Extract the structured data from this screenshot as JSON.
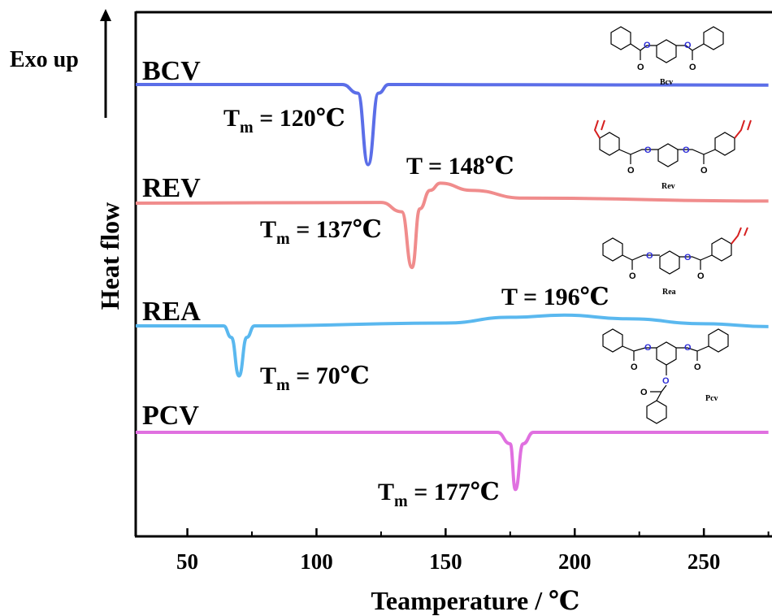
{
  "chart_data": {
    "type": "line",
    "xlabel": "Teamperature / ℃",
    "ylabel": "Heat flow",
    "y_direction_note": "Exo up",
    "xlim": [
      30,
      275
    ],
    "x_ticks": [
      50,
      100,
      150,
      200,
      250
    ],
    "y_ticks_shown": false,
    "grid": false,
    "series": [
      {
        "name": "BCV",
        "color": "#5b6ee8",
        "baseline": 0.0,
        "points": [
          [
            30,
            0.0
          ],
          [
            110,
            0.0
          ],
          [
            116,
            -0.6
          ],
          [
            120,
            -5.6
          ],
          [
            124,
            -0.6
          ],
          [
            128,
            0.0
          ],
          [
            200,
            -0.02
          ],
          [
            275,
            -0.04
          ]
        ]
      },
      {
        "name": "REV",
        "color": "#f08c8c",
        "baseline": 0.0,
        "points": [
          [
            30,
            0.0
          ],
          [
            125,
            0.05
          ],
          [
            133,
            -0.6
          ],
          [
            137,
            -4.5
          ],
          [
            140,
            -0.4
          ],
          [
            144,
            0.9
          ],
          [
            148,
            1.4
          ],
          [
            160,
            0.9
          ],
          [
            180,
            0.35
          ],
          [
            275,
            0.15
          ]
        ]
      },
      {
        "name": "REA",
        "color": "#5ab8ef",
        "baseline": 0.0,
        "points": [
          [
            30,
            0.0
          ],
          [
            64,
            0.0
          ],
          [
            67,
            -0.8
          ],
          [
            70,
            -3.5
          ],
          [
            73,
            -0.8
          ],
          [
            76,
            0.0
          ],
          [
            150,
            0.2
          ],
          [
            175,
            0.6
          ],
          [
            196,
            0.75
          ],
          [
            220,
            0.5
          ],
          [
            250,
            0.15
          ],
          [
            275,
            -0.05
          ]
        ]
      },
      {
        "name": "PCV",
        "color": "#e070e0",
        "baseline": 0.0,
        "points": [
          [
            30,
            0.0
          ],
          [
            170,
            0.0
          ],
          [
            175,
            -0.8
          ],
          [
            177,
            -4.0
          ],
          [
            180,
            -0.8
          ],
          [
            184,
            0.0
          ],
          [
            275,
            0.0
          ]
        ]
      }
    ],
    "annotations": [
      {
        "id": "bcv-tm",
        "text_main": "T",
        "text_sub": "m",
        "text_rest": " = 120℃",
        "x": 120
      },
      {
        "id": "rev-tm",
        "text_main": "T",
        "text_sub": "m",
        "text_rest": " = 137℃",
        "x": 137
      },
      {
        "id": "rev-t",
        "text_main": "T",
        "text_sub": "",
        "text_rest": " = 148℃",
        "x": 148
      },
      {
        "id": "rea-tm",
        "text_main": "T",
        "text_sub": "m",
        "text_rest": " = 70℃",
        "x": 70
      },
      {
        "id": "rea-t",
        "text_main": "T",
        "text_sub": "",
        "text_rest": " = 196℃",
        "x": 196
      },
      {
        "id": "pcv-tm",
        "text_main": "T",
        "text_sub": "m",
        "text_rest": " = 177℃",
        "x": 177
      }
    ],
    "structure_labels": [
      "Bcv",
      "Rev",
      "Rea",
      "Pcv"
    ],
    "colors": {
      "axis": "#000000",
      "oxygen": "#2b2bd6",
      "vinyl": "#d62020"
    }
  }
}
